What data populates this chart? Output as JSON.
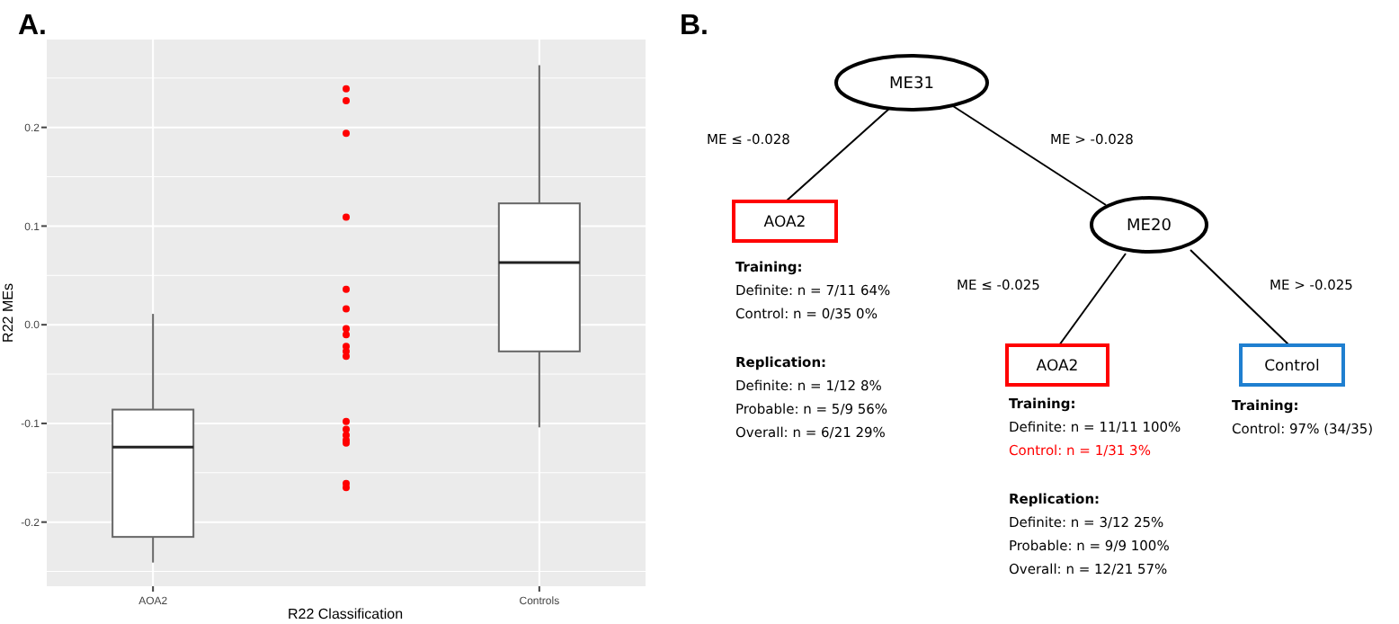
{
  "chart_data": [
    {
      "type": "box",
      "title": "A.",
      "xlabel": "R22 Classification",
      "ylabel": "R22 MEs",
      "categories": [
        "AOA2",
        null,
        "Controls"
      ],
      "boxes": [
        {
          "low": -0.241,
          "q1": -0.215,
          "median": -0.124,
          "q3": -0.086,
          "high": 0.011
        },
        null,
        {
          "low": -0.104,
          "q1": -0.027,
          "median": 0.063,
          "q3": 0.123,
          "high": 0.263
        }
      ],
      "series": [
        {
          "type": "scatter",
          "color": "#ff0000",
          "x": [
            null,
            null,
            null,
            null,
            null,
            null,
            null,
            null,
            null,
            null,
            null,
            null,
            null,
            null,
            null,
            null,
            null,
            null
          ],
          "values": [
            0.239,
            0.227,
            0.194,
            0.109,
            0.036,
            0.016,
            -0.004,
            -0.01,
            -0.022,
            -0.027,
            -0.032,
            -0.098,
            -0.106,
            -0.112,
            -0.117,
            -0.12,
            -0.161,
            -0.165
          ]
        }
      ],
      "ylim": [
        -0.265,
        0.289
      ],
      "yticks": [
        {
          "value": -0.25,
          "label": null
        },
        {
          "value": -0.2,
          "label": "-0.2"
        },
        {
          "value": -0.15,
          "label": null
        },
        {
          "value": -0.1,
          "label": "-0.1"
        },
        {
          "value": -0.05,
          "label": null
        },
        {
          "value": 0,
          "label": "0.0"
        },
        {
          "value": 0.05,
          "label": null
        },
        {
          "value": 0.1,
          "label": "0.1"
        },
        {
          "value": 0.15,
          "label": null
        },
        {
          "value": 0.2,
          "label": "0.2"
        },
        {
          "value": 0.25,
          "label": null
        }
      ],
      "grid": true,
      "marker": "circle"
    },
    {
      "type": "other",
      "title": "B.",
      "annotations": [
        "ME31",
        "ME ≤ -0.028",
        "ME > -0.028",
        "AOA2",
        "ME20",
        "Training:",
        "Definite: n = 7/11 64%",
        "Control: n = 0/35 0%",
        "Replication:",
        "Definite: n = 1/12 8%",
        "Probable: n = 5/9 56%",
        "Overall: n = 6/21 29%",
        "ME ≤ -0.025",
        "ME > -0.025",
        "AOA2",
        "Control",
        "Training:",
        "Definite: n = 11/11 100%",
        "Control: n = 1/31 3%",
        "Replication:",
        "Definite: n = 3/12 25%",
        "Probable: n = 9/9 100%",
        "Overall: n = 12/21 57%",
        "Training:",
        "Control: 97% (34/35)"
      ]
    }
  ]
}
